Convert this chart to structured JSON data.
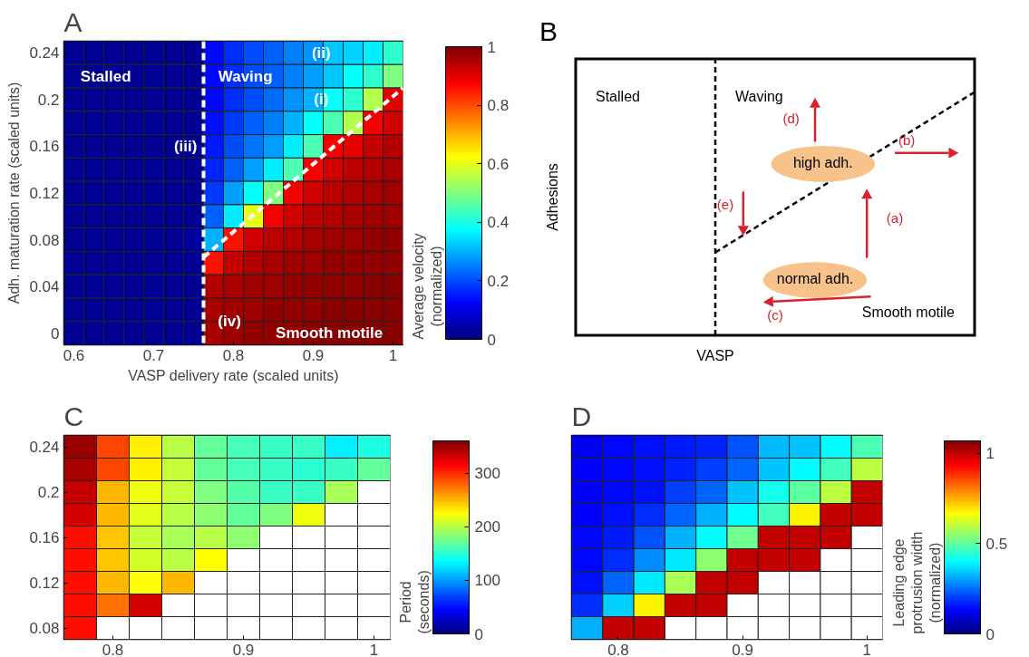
{
  "chart_data": [
    {
      "type": "heatmap",
      "title": "A",
      "xlabel": "VASP delivery rate (scaled units)",
      "ylabel": "Adh. maturation rate (scaled units)",
      "clabel": "Average velocity\n(normalized)",
      "x": [
        0.6,
        0.625,
        0.65,
        0.675,
        0.7,
        0.725,
        0.75,
        0.775,
        0.8,
        0.825,
        0.85,
        0.875,
        0.9,
        0.925,
        0.95,
        0.975,
        1.0
      ],
      "y": [
        0.24,
        0.22,
        0.2,
        0.18,
        0.16,
        0.14,
        0.12,
        0.1,
        0.08,
        0.06,
        0.04,
        0.02,
        0.0
      ],
      "cells": [
        [
          0.02,
          0.02,
          0.02,
          0.02,
          0.02,
          0.02,
          0.02,
          0.13,
          0.17,
          0.2,
          0.22,
          0.25,
          0.27,
          0.32,
          0.33,
          0.36,
          0.42
        ],
        [
          0.02,
          0.02,
          0.02,
          0.02,
          0.02,
          0.02,
          0.02,
          0.13,
          0.17,
          0.2,
          0.22,
          0.25,
          0.28,
          0.32,
          0.38,
          0.42,
          0.5
        ],
        [
          0.02,
          0.02,
          0.02,
          0.02,
          0.02,
          0.02,
          0.02,
          0.13,
          0.17,
          0.2,
          0.23,
          0.27,
          0.3,
          0.38,
          0.42,
          0.55,
          0.9
        ],
        [
          0.02,
          0.02,
          0.02,
          0.02,
          0.02,
          0.02,
          0.02,
          0.14,
          0.18,
          0.22,
          0.25,
          0.3,
          0.38,
          0.45,
          0.55,
          0.88,
          0.92
        ],
        [
          0.02,
          0.02,
          0.02,
          0.02,
          0.02,
          0.02,
          0.02,
          0.15,
          0.2,
          0.24,
          0.28,
          0.36,
          0.45,
          0.88,
          0.9,
          0.93,
          0.95
        ],
        [
          0.02,
          0.02,
          0.02,
          0.02,
          0.02,
          0.02,
          0.02,
          0.16,
          0.22,
          0.28,
          0.36,
          0.45,
          0.88,
          0.92,
          0.94,
          0.95,
          0.96
        ],
        [
          0.02,
          0.02,
          0.02,
          0.02,
          0.02,
          0.02,
          0.02,
          0.18,
          0.28,
          0.38,
          0.5,
          0.88,
          0.92,
          0.94,
          0.95,
          0.96,
          0.97
        ],
        [
          0.02,
          0.02,
          0.02,
          0.02,
          0.02,
          0.02,
          0.02,
          0.22,
          0.36,
          0.6,
          0.88,
          0.92,
          0.94,
          0.95,
          0.96,
          0.97,
          0.97
        ],
        [
          0.02,
          0.02,
          0.02,
          0.02,
          0.02,
          0.02,
          0.03,
          0.3,
          0.86,
          0.92,
          0.94,
          0.95,
          0.96,
          0.97,
          0.97,
          0.98,
          0.98
        ],
        [
          0.02,
          0.02,
          0.02,
          0.02,
          0.02,
          0.02,
          0.02,
          0.86,
          0.93,
          0.95,
          0.96,
          0.97,
          0.97,
          0.98,
          0.98,
          0.98,
          0.98
        ],
        [
          0.02,
          0.02,
          0.02,
          0.02,
          0.02,
          0.02,
          0.02,
          0.95,
          0.96,
          0.97,
          0.97,
          0.98,
          0.98,
          0.98,
          0.98,
          0.99,
          0.99
        ],
        [
          0.02,
          0.02,
          0.02,
          0.02,
          0.02,
          0.02,
          0.02,
          0.96,
          0.97,
          0.97,
          0.98,
          0.98,
          0.98,
          0.99,
          0.99,
          0.99,
          0.99
        ],
        [
          0.02,
          0.02,
          0.02,
          0.02,
          0.02,
          0.02,
          0.02,
          0.96,
          0.97,
          0.98,
          0.98,
          0.98,
          0.99,
          0.99,
          0.99,
          0.99,
          0.99
        ]
      ],
      "xlim": [
        0.5875,
        1.0125
      ],
      "ylim": [
        -0.01,
        0.25
      ],
      "xticks": [
        0.6,
        0.7,
        0.8,
        0.9,
        1
      ],
      "yticks": [
        0,
        0.04,
        0.08,
        0.12,
        0.16,
        0.2,
        0.24
      ],
      "clim": [
        0,
        1
      ],
      "cticks": [
        0,
        0.2,
        0.4,
        0.6,
        0.8,
        1
      ],
      "ref_lines": [
        {
          "axis": "x",
          "value": 0.7625,
          "label": null,
          "color": "#ffffff",
          "line_style": "dashed"
        }
      ],
      "series": [
        {
          "type": "line",
          "x": [
            0.7625,
            1.0125
          ],
          "values": [
            0.065,
            0.21
          ],
          "color": "#ffffff",
          "line_style": "dashed"
        }
      ],
      "annotations": [
        "Stalled",
        "Waving",
        "(i)",
        "(ii)",
        "(iii)",
        "(iv)",
        "Smooth motile"
      ]
    },
    {
      "type": "other",
      "title": "B",
      "xlabel": "VASP",
      "ylabel": "Adhesions",
      "annotations": [
        "Stalled",
        "Waving",
        "high adh.",
        "normal adh.",
        "Smooth motile",
        "(a)",
        "(b)",
        "(c)",
        "(d)",
        "(e)"
      ]
    },
    {
      "type": "heatmap",
      "title": "C",
      "clabel": "Period\n(seconds)",
      "x": [
        0.775,
        0.8,
        0.825,
        0.85,
        0.875,
        0.9,
        0.925,
        0.95,
        0.975,
        1.0
      ],
      "y": [
        0.24,
        0.22,
        0.2,
        0.18,
        0.16,
        0.14,
        0.12,
        0.1,
        0.08
      ],
      "cells": [
        [
          350,
          290,
          230,
          200,
          170,
          160,
          155,
          155,
          130,
          145
        ],
        [
          345,
          290,
          230,
          205,
          170,
          160,
          155,
          150,
          155,
          170
        ],
        [
          335,
          250,
          220,
          205,
          180,
          165,
          155,
          155,
          195,
          null
        ],
        [
          330,
          250,
          215,
          200,
          185,
          170,
          180,
          220,
          null,
          null
        ],
        [
          310,
          245,
          205,
          195,
          200,
          185,
          null,
          null,
          null,
          null
        ],
        [
          310,
          245,
          210,
          200,
          225,
          null,
          null,
          null,
          null,
          null
        ],
        [
          310,
          250,
          225,
          250,
          null,
          null,
          null,
          null,
          null,
          null
        ],
        [
          310,
          275,
          330,
          null,
          null,
          null,
          null,
          null,
          null,
          null
        ],
        [
          310,
          null,
          null,
          null,
          null,
          null,
          null,
          null,
          null,
          null
        ]
      ],
      "xlim": [
        0.7625,
        1.0125
      ],
      "ylim": [
        0.07,
        0.25
      ],
      "xticks": [
        0.8,
        0.9,
        1
      ],
      "yticks": [
        0.08,
        0.12,
        0.16,
        0.2,
        0.24
      ],
      "clim": [
        0,
        360
      ],
      "cticks": [
        0,
        100,
        200,
        300
      ]
    },
    {
      "type": "heatmap",
      "title": "D",
      "clabel": "Leading edge\nprotrusion width\n(normalized)",
      "x": [
        0.775,
        0.8,
        0.825,
        0.85,
        0.875,
        0.9,
        0.925,
        0.95,
        0.975,
        1.0
      ],
      "y": [
        0.24,
        0.22,
        0.2,
        0.18,
        0.16,
        0.14,
        0.12,
        0.1,
        0.08
      ],
      "cells": [
        [
          0.12,
          0.14,
          0.15,
          0.16,
          0.17,
          0.22,
          0.33,
          0.34,
          0.4,
          0.48
        ],
        [
          0.13,
          0.14,
          0.15,
          0.17,
          0.2,
          0.24,
          0.34,
          0.4,
          0.47,
          0.6
        ],
        [
          0.13,
          0.14,
          0.15,
          0.2,
          0.24,
          0.34,
          0.42,
          0.5,
          0.6,
          1.0
        ],
        [
          0.13,
          0.15,
          0.18,
          0.24,
          0.32,
          0.4,
          0.47,
          0.68,
          1.0,
          1.0
        ],
        [
          0.14,
          0.16,
          0.22,
          0.32,
          0.4,
          0.52,
          1.0,
          1.0,
          1.0,
          null
        ],
        [
          0.14,
          0.18,
          0.28,
          0.38,
          0.55,
          1.0,
          1.0,
          1.0,
          null,
          null
        ],
        [
          0.15,
          0.24,
          0.38,
          0.58,
          1.0,
          1.0,
          null,
          null,
          null,
          null
        ],
        [
          0.18,
          0.35,
          0.68,
          1.0,
          1.0,
          null,
          null,
          null,
          null,
          null
        ],
        [
          0.32,
          1.0,
          1.0,
          null,
          null,
          null,
          null,
          null,
          null,
          null
        ]
      ],
      "xlim": [
        0.7625,
        1.0125
      ],
      "ylim": [
        0.07,
        0.25
      ],
      "xticks": [
        0.8,
        0.9,
        1
      ],
      "tick_labels": "x",
      "clim": [
        0,
        1.07
      ],
      "cticks": [
        0,
        0.5,
        1
      ]
    }
  ]
}
